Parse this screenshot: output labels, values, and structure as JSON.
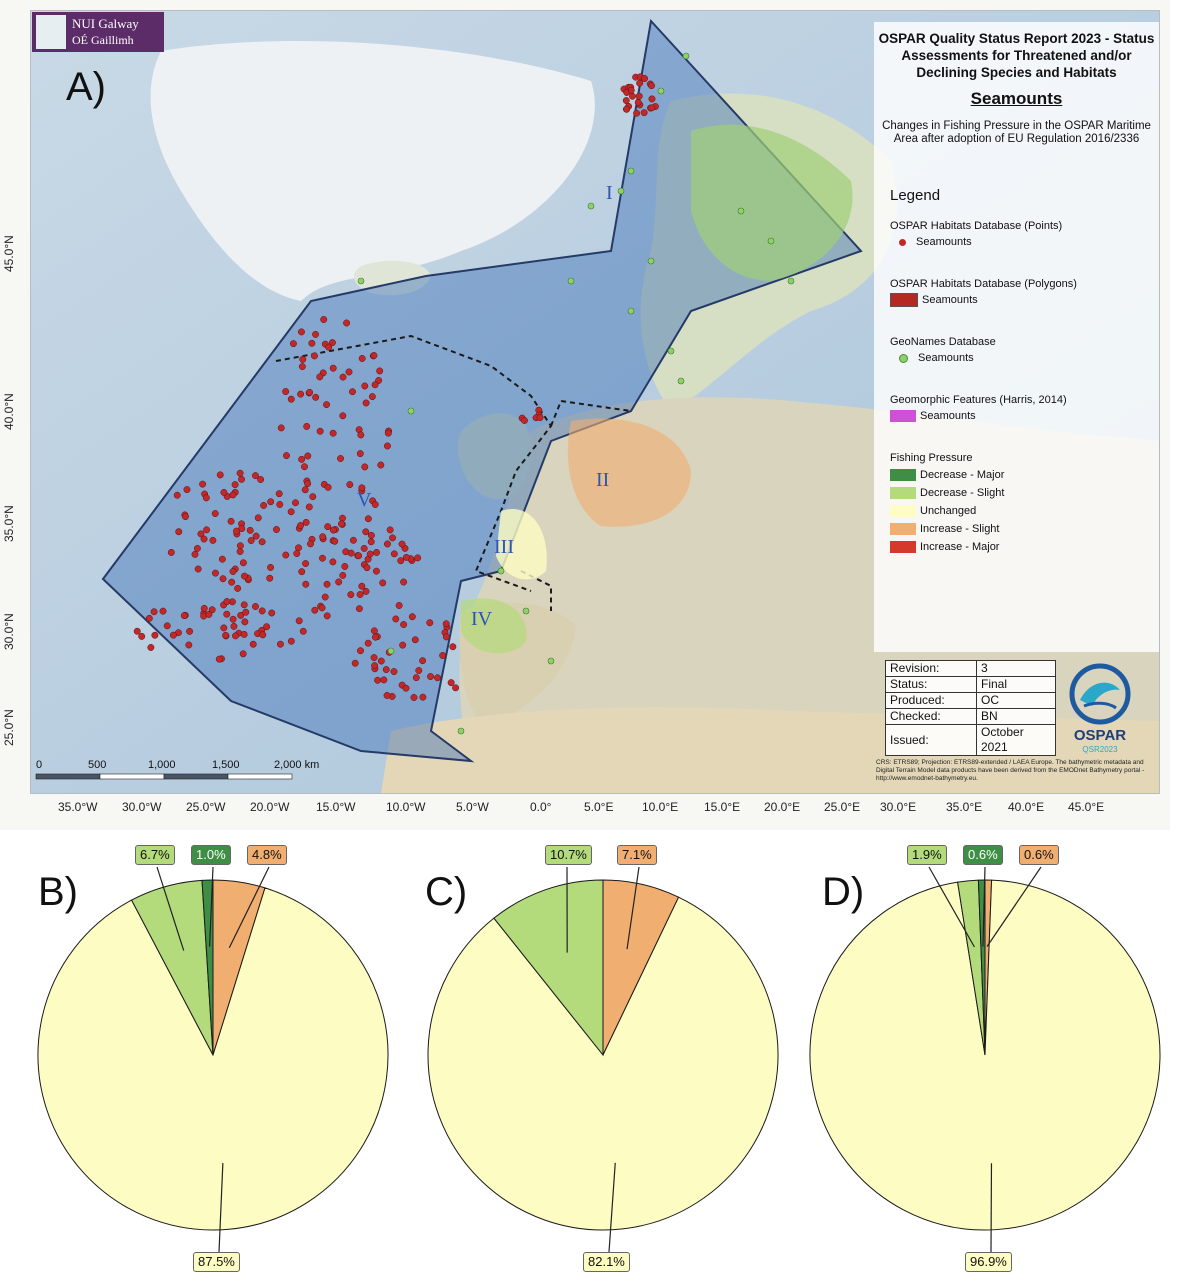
{
  "logo": {
    "name": "NUI Galway",
    "irish_name": "OÉ Gaillimh"
  },
  "panels": {
    "a": "A)",
    "b": "B)",
    "c": "C)",
    "d": "D)"
  },
  "title": {
    "main": "OSPAR Quality Status Report 2023 - Status Assessments for Threatened and/or Declining Species and Habitats",
    "subject": "Seamounts",
    "description": "Changes in Fishing Pressure in the OSPAR Maritime Area after adoption of EU Regulation 2016/2336"
  },
  "legend": {
    "title": "Legend",
    "groups": [
      {
        "heading": "OSPAR Habitats Database (Points)",
        "item": "Seamounts",
        "symbol": "dot",
        "color": "#c0282a"
      },
      {
        "heading": "OSPAR Habitats Database (Polygons)",
        "item": "Seamounts",
        "symbol": "box",
        "color": "#b42a22"
      },
      {
        "heading": "GeoNames Database",
        "item": "Seamounts",
        "symbol": "dot",
        "color": "#8ed06a"
      },
      {
        "heading": "Geomorphic Features (Harris, 2014)",
        "item": "Seamounts",
        "symbol": "box",
        "color": "#cf4fd6"
      }
    ],
    "fishing": {
      "heading": "Fishing Pressure",
      "items": [
        {
          "label": "Decrease - Major",
          "color": "#3e8f45"
        },
        {
          "label": "Decrease - Slight",
          "color": "#b3da7b"
        },
        {
          "label": "Unchanged",
          "color": "#fcfcc3"
        },
        {
          "label": "Increase - Slight",
          "color": "#f0ae70"
        },
        {
          "label": "Increase - Major",
          "color": "#d33a2c"
        }
      ]
    }
  },
  "regions": [
    "I",
    "II",
    "III",
    "IV",
    "V"
  ],
  "revision_table": [
    {
      "key": "Revision:",
      "value": "3"
    },
    {
      "key": "Status:",
      "value": "Final"
    },
    {
      "key": "Produced:",
      "value": "OC"
    },
    {
      "key": "Checked:",
      "value": "BN"
    },
    {
      "key": "Issued:",
      "value": "October 2021"
    }
  ],
  "ospar_logo": {
    "word": "OSPAR",
    "tag": "QSR2023"
  },
  "crs_note": "CRS: ETRS89; Projection: ETRS89-extended / LAEA Europe. The bathymetric metadata and Digital Terrain Model data products have been derived from the EMODnet Bathymetry portal - http://www.emodnet-bathymetry.eu.",
  "scale_bar": {
    "labels": [
      "0",
      "500",
      "1,000",
      "1,500",
      "2,000 km"
    ]
  },
  "lat_labels": [
    "45.0°N",
    "40.0°N",
    "35.0°N",
    "30.0°N",
    "25.0°N"
  ],
  "lon_labels": [
    "35.0°W",
    "30.0°W",
    "25.0°W",
    "20.0°W",
    "15.0°W",
    "10.0°W",
    "5.0°W",
    "0.0°",
    "5.0°E",
    "10.0°E",
    "15.0°E",
    "20.0°E",
    "25.0°E",
    "30.0°E",
    "35.0°E",
    "40.0°E",
    "45.0°E"
  ],
  "chart_data": [
    {
      "type": "pie",
      "panel": "B)",
      "slices": [
        {
          "category": "Increase - Slight",
          "value": 4.8,
          "label": "4.8%"
        },
        {
          "category": "Unchanged",
          "value": 87.5,
          "label": "87.5%"
        },
        {
          "category": "Decrease - Slight",
          "value": 6.7,
          "label": "6.7%"
        },
        {
          "category": "Decrease - Major",
          "value": 1.0,
          "label": "1.0%"
        }
      ]
    },
    {
      "type": "pie",
      "panel": "C)",
      "slices": [
        {
          "category": "Increase - Slight",
          "value": 7.1,
          "label": "7.1%"
        },
        {
          "category": "Unchanged",
          "value": 82.1,
          "label": "82.1%"
        },
        {
          "category": "Decrease - Slight",
          "value": 10.7,
          "label": "10.7%"
        }
      ]
    },
    {
      "type": "pie",
      "panel": "D)",
      "slices": [
        {
          "category": "Increase - Slight",
          "value": 0.6,
          "label": "0.6%"
        },
        {
          "category": "Unchanged",
          "value": 96.9,
          "label": "96.9%"
        },
        {
          "category": "Decrease - Slight",
          "value": 1.9,
          "label": "1.9%"
        },
        {
          "category": "Decrease - Major",
          "value": 0.6,
          "label": "0.6%"
        }
      ]
    }
  ]
}
